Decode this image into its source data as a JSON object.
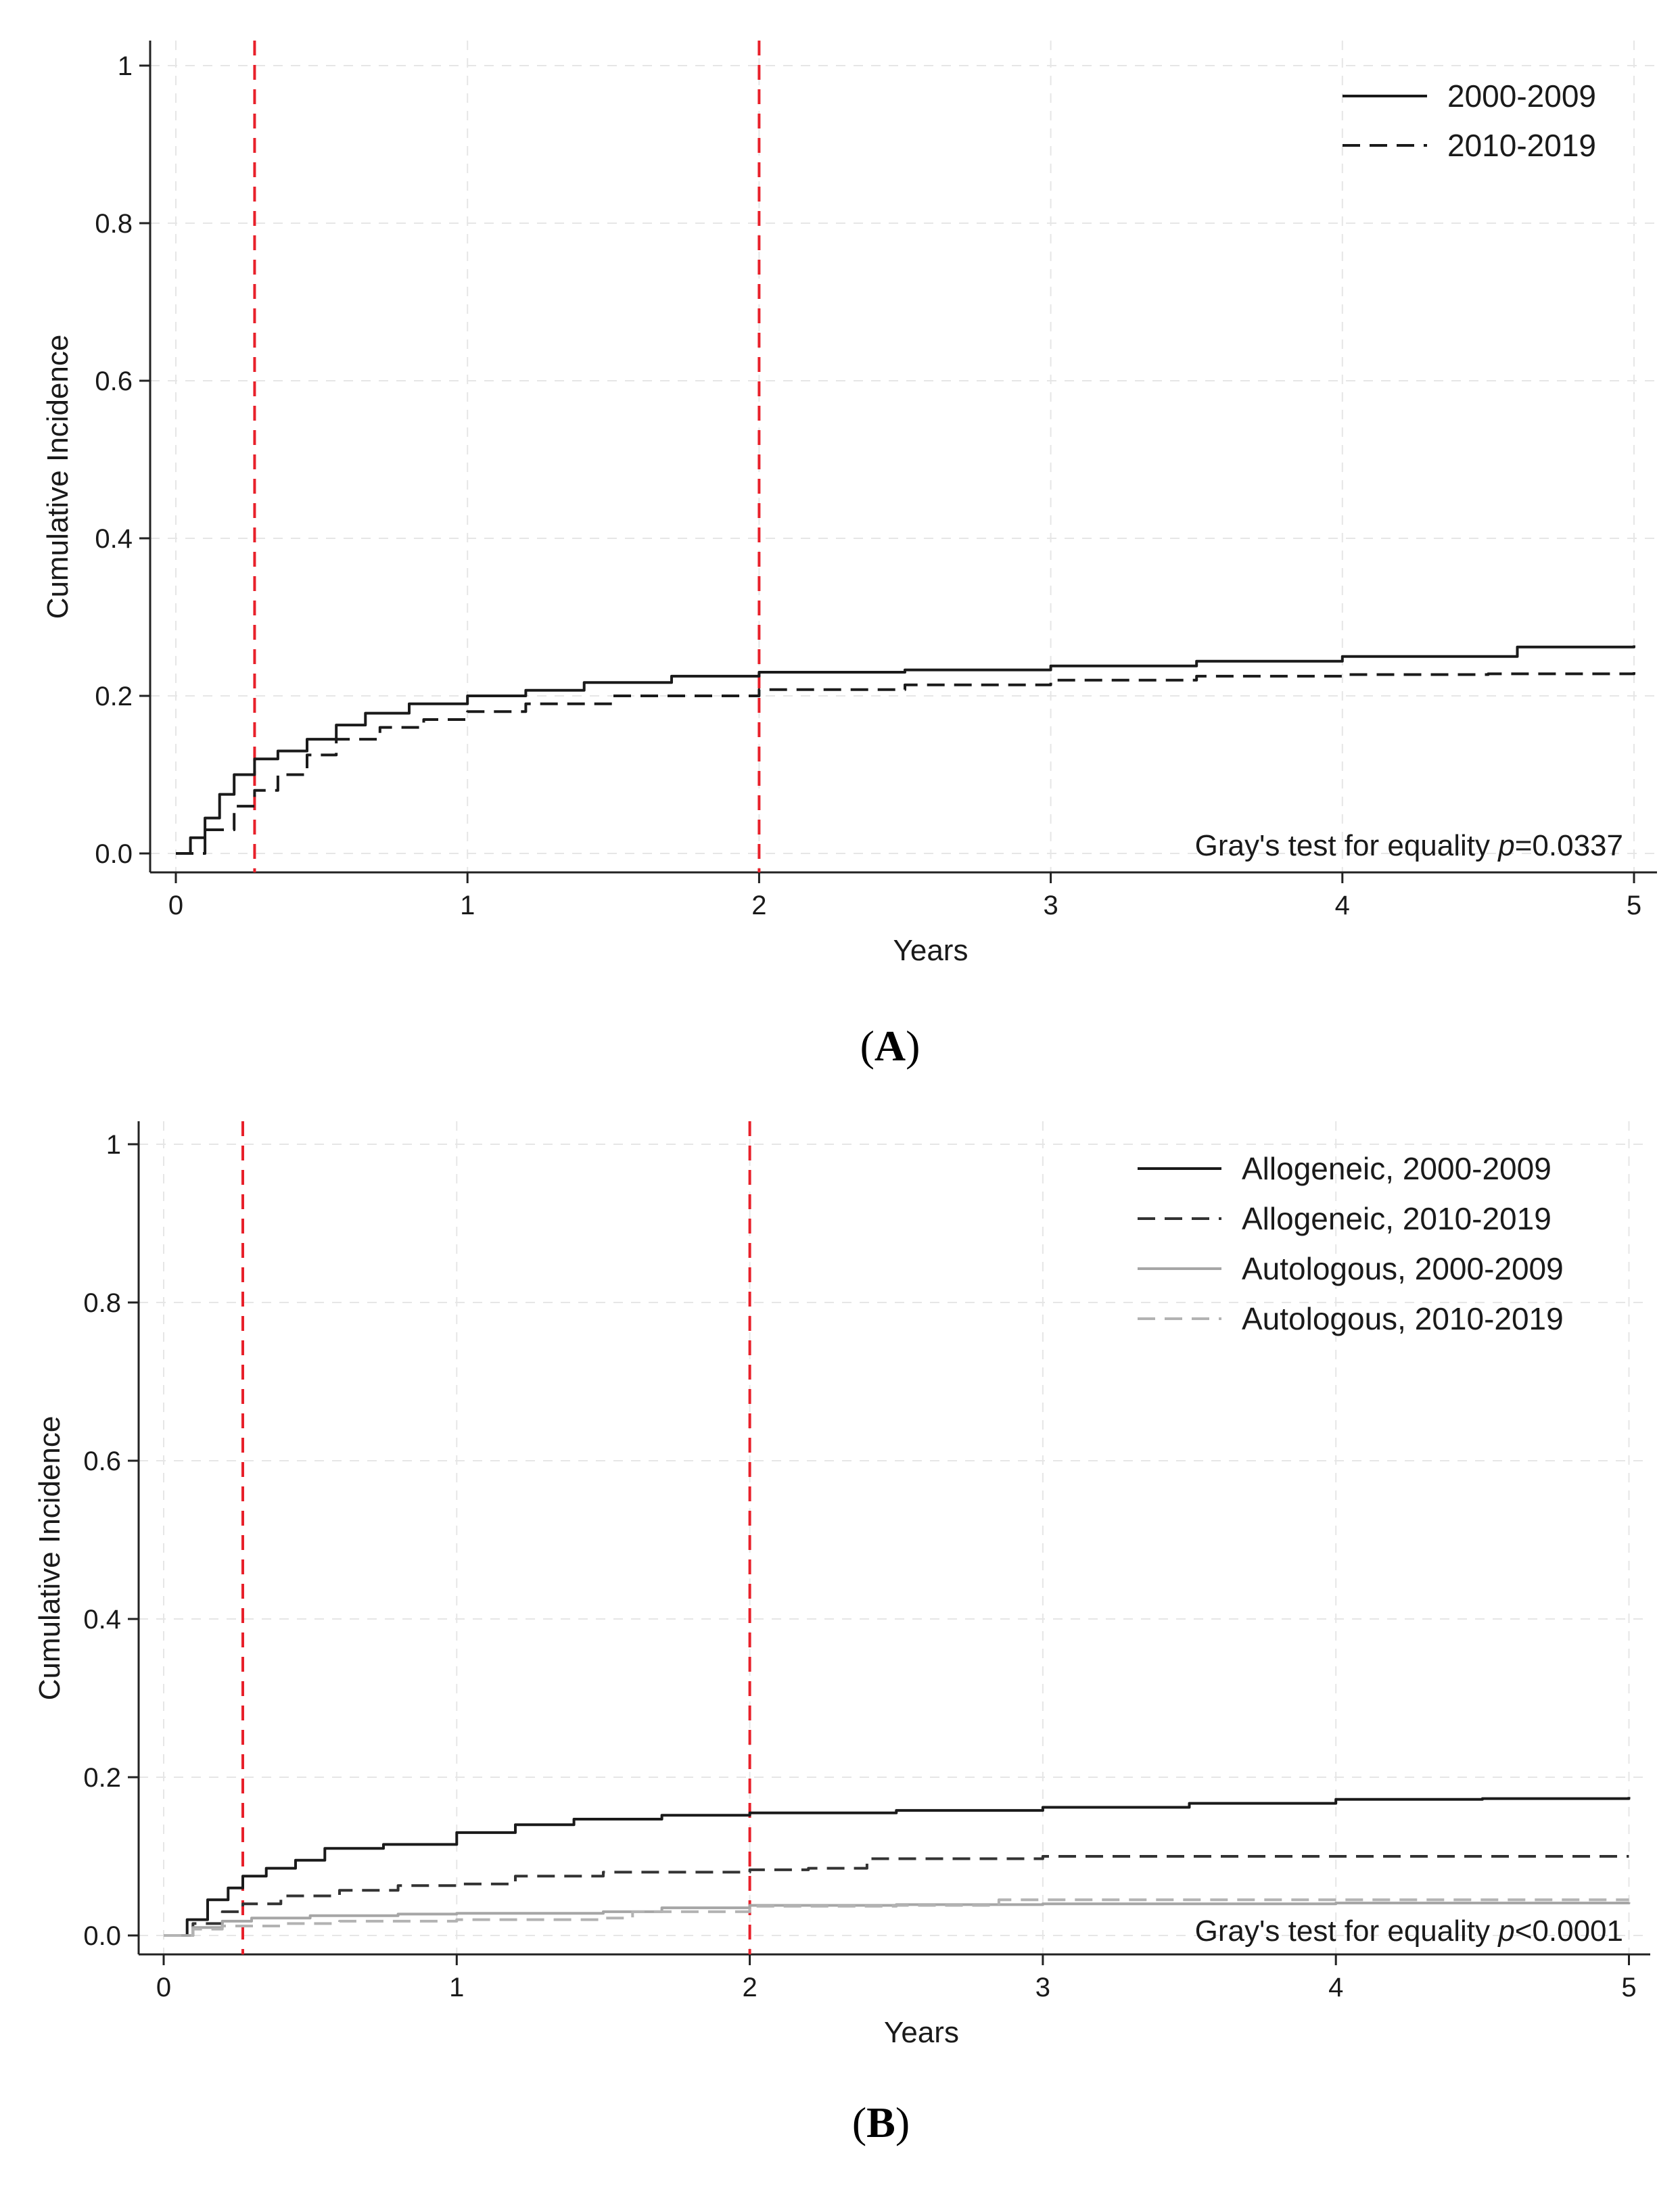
{
  "chart_data": [
    {
      "type": "line",
      "panel_label": "A",
      "xlabel": "Years",
      "ylabel": "Cumulative Incidence",
      "xlim": [
        0,
        5
      ],
      "ylim": [
        0,
        1
      ],
      "xticks": [
        "0",
        "1",
        "2",
        "3",
        "4",
        "5"
      ],
      "yticks": [
        "0.0",
        "0.2",
        "0.4",
        "0.6",
        "0.8",
        "1"
      ],
      "grid": true,
      "legend_position": "top-right",
      "reference_lines": {
        "x": [
          0.27,
          2
        ],
        "color": "#e8202a"
      },
      "annotation": {
        "text": "Gray's test for equality ",
        "italic": "p",
        "value": "=0.0337"
      },
      "series": [
        {
          "name": "2000-2009",
          "style": "solid",
          "color": "#1a1a1a",
          "x": [
            0,
            0.05,
            0.1,
            0.15,
            0.2,
            0.27,
            0.35,
            0.45,
            0.55,
            0.65,
            0.8,
            1.0,
            1.2,
            1.4,
            1.7,
            2.0,
            2.5,
            3.0,
            3.5,
            4.0,
            4.6,
            5.0
          ],
          "y": [
            0,
            0.02,
            0.045,
            0.075,
            0.1,
            0.12,
            0.13,
            0.145,
            0.163,
            0.178,
            0.19,
            0.2,
            0.207,
            0.217,
            0.225,
            0.23,
            0.233,
            0.238,
            0.244,
            0.25,
            0.262,
            0.264
          ]
        },
        {
          "name": "2010-2019",
          "style": "dashed",
          "color": "#1a1a1a",
          "x": [
            0,
            0.1,
            0.2,
            0.27,
            0.35,
            0.45,
            0.55,
            0.7,
            0.85,
            1.0,
            1.2,
            1.5,
            2.0,
            2.5,
            3.0,
            3.5,
            4.0,
            4.5,
            5.0
          ],
          "y": [
            0,
            0.03,
            0.06,
            0.08,
            0.1,
            0.125,
            0.145,
            0.16,
            0.17,
            0.18,
            0.19,
            0.2,
            0.208,
            0.214,
            0.22,
            0.225,
            0.227,
            0.228,
            0.23
          ]
        }
      ]
    },
    {
      "type": "line",
      "panel_label": "B",
      "xlabel": "Years",
      "ylabel": "Cumulative Incidence",
      "xlim": [
        0,
        5
      ],
      "ylim": [
        0,
        1
      ],
      "xticks": [
        "0",
        "1",
        "2",
        "3",
        "4",
        "5"
      ],
      "yticks": [
        "0.0",
        "0.2",
        "0.4",
        "0.6",
        "0.8",
        "1"
      ],
      "grid": true,
      "legend_position": "top-right",
      "reference_lines": {
        "x": [
          0.27,
          2
        ],
        "color": "#e8202a"
      },
      "annotation": {
        "text": "Gray's test for equality ",
        "italic": "p",
        "value": "<0.0001"
      },
      "series": [
        {
          "name": "Allogeneic, 2000-2009",
          "style": "solid",
          "color": "#1a1a1a",
          "x": [
            0,
            0.08,
            0.15,
            0.22,
            0.27,
            0.35,
            0.45,
            0.55,
            0.75,
            1.0,
            1.2,
            1.4,
            1.7,
            2.0,
            2.5,
            3.0,
            3.5,
            4.0,
            4.5,
            5.0
          ],
          "y": [
            0,
            0.02,
            0.045,
            0.06,
            0.075,
            0.085,
            0.095,
            0.11,
            0.115,
            0.13,
            0.14,
            0.147,
            0.152,
            0.155,
            0.158,
            0.162,
            0.167,
            0.172,
            0.173,
            0.175
          ]
        },
        {
          "name": "Allogeneic, 2010-2019",
          "style": "dashed",
          "color": "#333333",
          "x": [
            0,
            0.1,
            0.2,
            0.27,
            0.4,
            0.6,
            0.8,
            1.0,
            1.2,
            1.5,
            2.0,
            2.2,
            2.4,
            3.0,
            4.0,
            5.0
          ],
          "y": [
            0,
            0.015,
            0.03,
            0.04,
            0.05,
            0.057,
            0.063,
            0.065,
            0.075,
            0.08,
            0.083,
            0.085,
            0.097,
            0.1,
            0.1,
            0.1
          ]
        },
        {
          "name": "Autologous, 2000-2009",
          "style": "solid",
          "color": "#a6a6a6",
          "x": [
            0,
            0.1,
            0.2,
            0.3,
            0.5,
            0.8,
            1.0,
            1.5,
            1.7,
            2.0,
            2.5,
            3.0,
            4.0,
            5.0
          ],
          "y": [
            0,
            0.01,
            0.018,
            0.022,
            0.025,
            0.027,
            0.028,
            0.03,
            0.035,
            0.038,
            0.039,
            0.04,
            0.041,
            0.042
          ]
        },
        {
          "name": "Autologous, 2010-2019",
          "style": "dashed",
          "color": "#b3b3b3",
          "x": [
            0,
            0.1,
            0.2,
            0.4,
            0.6,
            1.0,
            1.5,
            1.6,
            2.0,
            2.5,
            2.85,
            3.0,
            4.0,
            5.0
          ],
          "y": [
            0,
            0.008,
            0.012,
            0.015,
            0.018,
            0.02,
            0.022,
            0.03,
            0.037,
            0.038,
            0.045,
            0.045,
            0.045,
            0.045
          ]
        }
      ]
    }
  ]
}
